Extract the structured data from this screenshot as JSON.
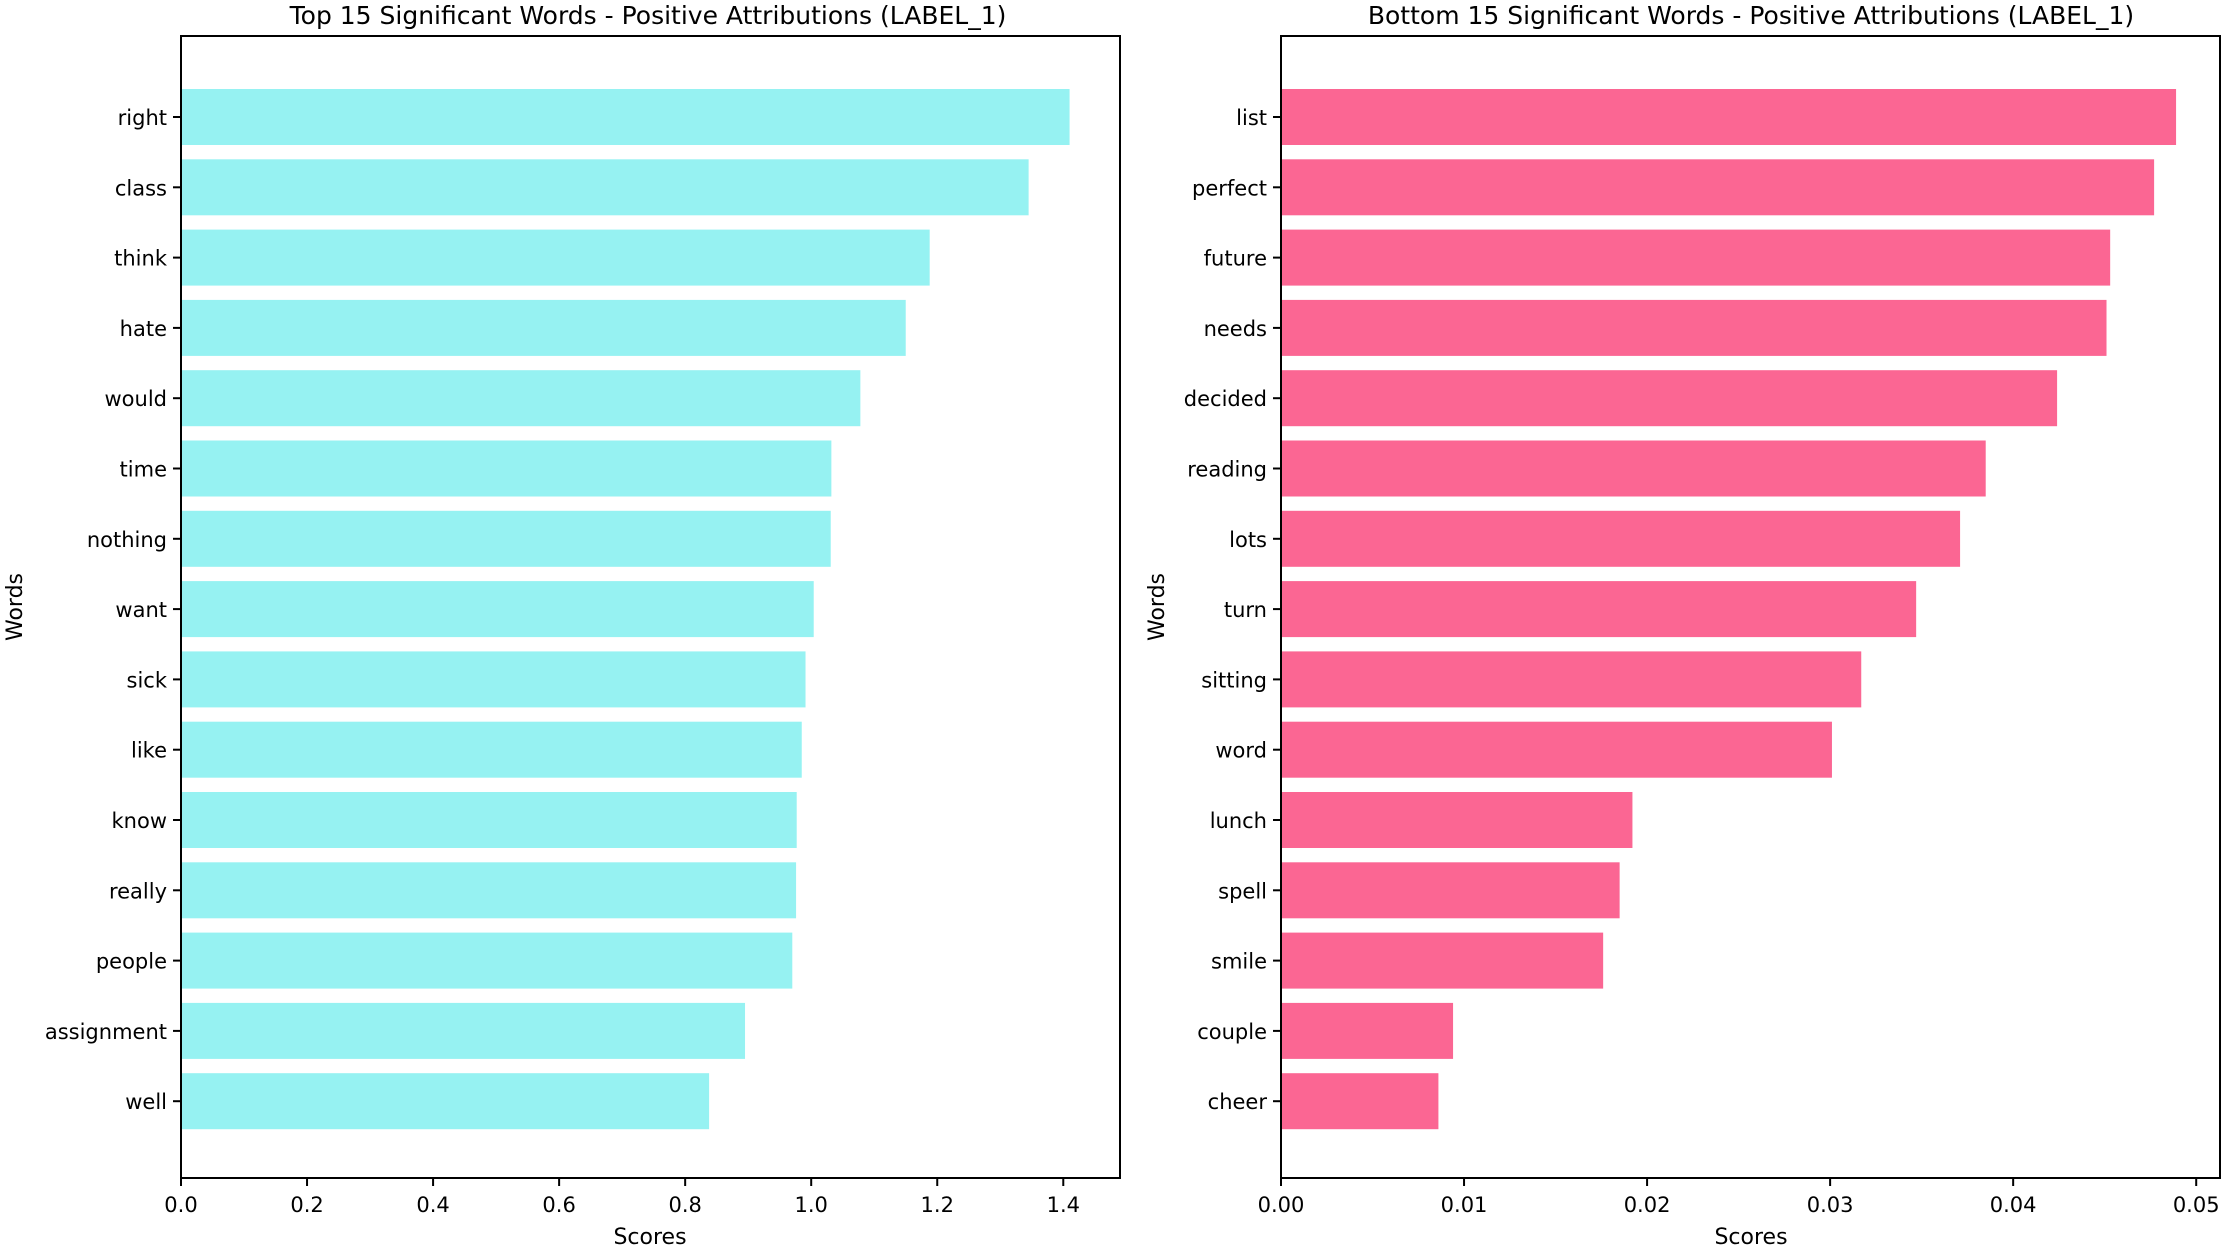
{
  "chart_data": [
    {
      "type": "bar",
      "orientation": "horizontal",
      "title": "Top 15 Significant Words - Positive Attributions (LABEL_1)",
      "xlabel": "Scores",
      "ylabel": "Words",
      "categories": [
        "right",
        "class",
        "think",
        "hate",
        "would",
        "time",
        "nothing",
        "want",
        "sick",
        "like",
        "know",
        "really",
        "people",
        "assignment",
        "well"
      ],
      "values": [
        1.41,
        1.345,
        1.188,
        1.15,
        1.078,
        1.032,
        1.031,
        1.004,
        0.991,
        0.985,
        0.977,
        0.976,
        0.97,
        0.895,
        0.838
      ],
      "xlim": [
        0,
        1.49
      ],
      "xticks": [
        0.0,
        0.2,
        0.4,
        0.6,
        0.8,
        1.0,
        1.2,
        1.4
      ],
      "xtick_labels": [
        "0.0",
        "0.2",
        "0.4",
        "0.6",
        "0.8",
        "1.0",
        "1.2",
        "1.4"
      ],
      "color": "#96f2f2",
      "grid": false
    },
    {
      "type": "bar",
      "orientation": "horizontal",
      "title": "Bottom 15 Significant Words - Positive Attributions (LABEL_1)",
      "xlabel": "Scores",
      "ylabel": "Words",
      "categories": [
        "list",
        "perfect",
        "future",
        "needs",
        "decided",
        "reading",
        "lots",
        "turn",
        "sitting",
        "word",
        "lunch",
        "spell",
        "smile",
        "couple",
        "cheer"
      ],
      "values": [
        0.0489,
        0.0477,
        0.0453,
        0.0451,
        0.0424,
        0.0385,
        0.0371,
        0.0347,
        0.0317,
        0.0301,
        0.0192,
        0.0185,
        0.0176,
        0.0094,
        0.0086
      ],
      "xlim": [
        0,
        0.0513
      ],
      "xticks": [
        0.0,
        0.01,
        0.02,
        0.03,
        0.04,
        0.05
      ],
      "xtick_labels": [
        "0.00",
        "0.01",
        "0.02",
        "0.03",
        "0.04",
        "0.05"
      ],
      "color": "#fb6693",
      "grid": false
    }
  ]
}
